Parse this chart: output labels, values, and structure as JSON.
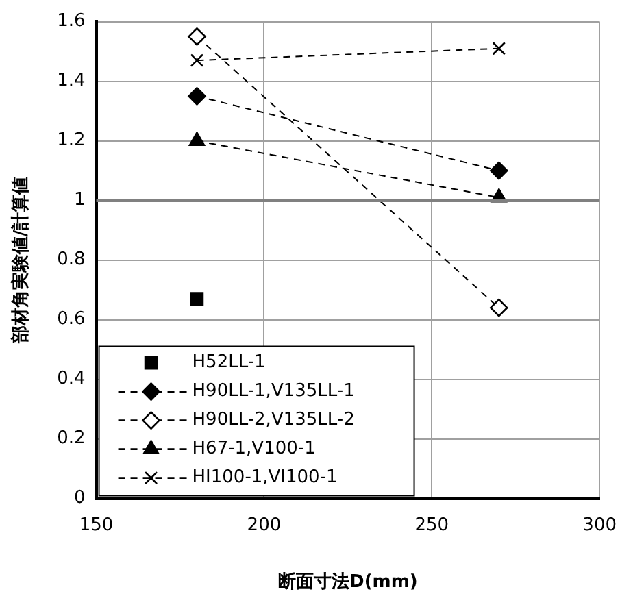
{
  "chart_data": {
    "type": "line",
    "xlabel": "断面寸法D(mm)",
    "ylabel": "部材角実験値/計算値",
    "x": [
      180,
      270
    ],
    "xlim": [
      150,
      300
    ],
    "xticks": [
      150,
      200,
      250,
      300
    ],
    "ylim": [
      0,
      1.6
    ],
    "yticks": [
      0,
      0.2,
      0.4,
      0.6,
      0.8,
      1,
      1.2,
      1.4,
      1.6
    ],
    "grid": true,
    "legend": "bottom left",
    "ref_lines": [
      {
        "axis": "y",
        "value": 1,
        "color": "#808080"
      }
    ],
    "series": [
      {
        "name": "H52LL-1",
        "type": "scatter",
        "marker": "square",
        "color": "#000000",
        "values": [
          0.67,
          null
        ]
      },
      {
        "name": "H90LL-1,V135LL-1",
        "type": "line",
        "marker": "diamond",
        "line_style": "dashed",
        "color": "#000000",
        "values": [
          1.35,
          1.1
        ]
      },
      {
        "name": "H90LL-2,V135LL-2",
        "type": "line",
        "marker": "diamond",
        "line_style": "dashed",
        "color": "#000000",
        "colors": [
          "#ffffff",
          "#ffffff"
        ],
        "values": [
          1.55,
          0.64
        ]
      },
      {
        "name": "H67-1,V100-1",
        "type": "line",
        "marker": "triangle",
        "line_style": "dashed",
        "color": "#000000",
        "values": [
          1.2,
          1.01
        ]
      },
      {
        "name": "HI100-1,VI100-1",
        "type": "line",
        "marker": "cross",
        "line_style": "dashed",
        "color": "#000000",
        "values": [
          1.47,
          1.51
        ]
      }
    ]
  }
}
